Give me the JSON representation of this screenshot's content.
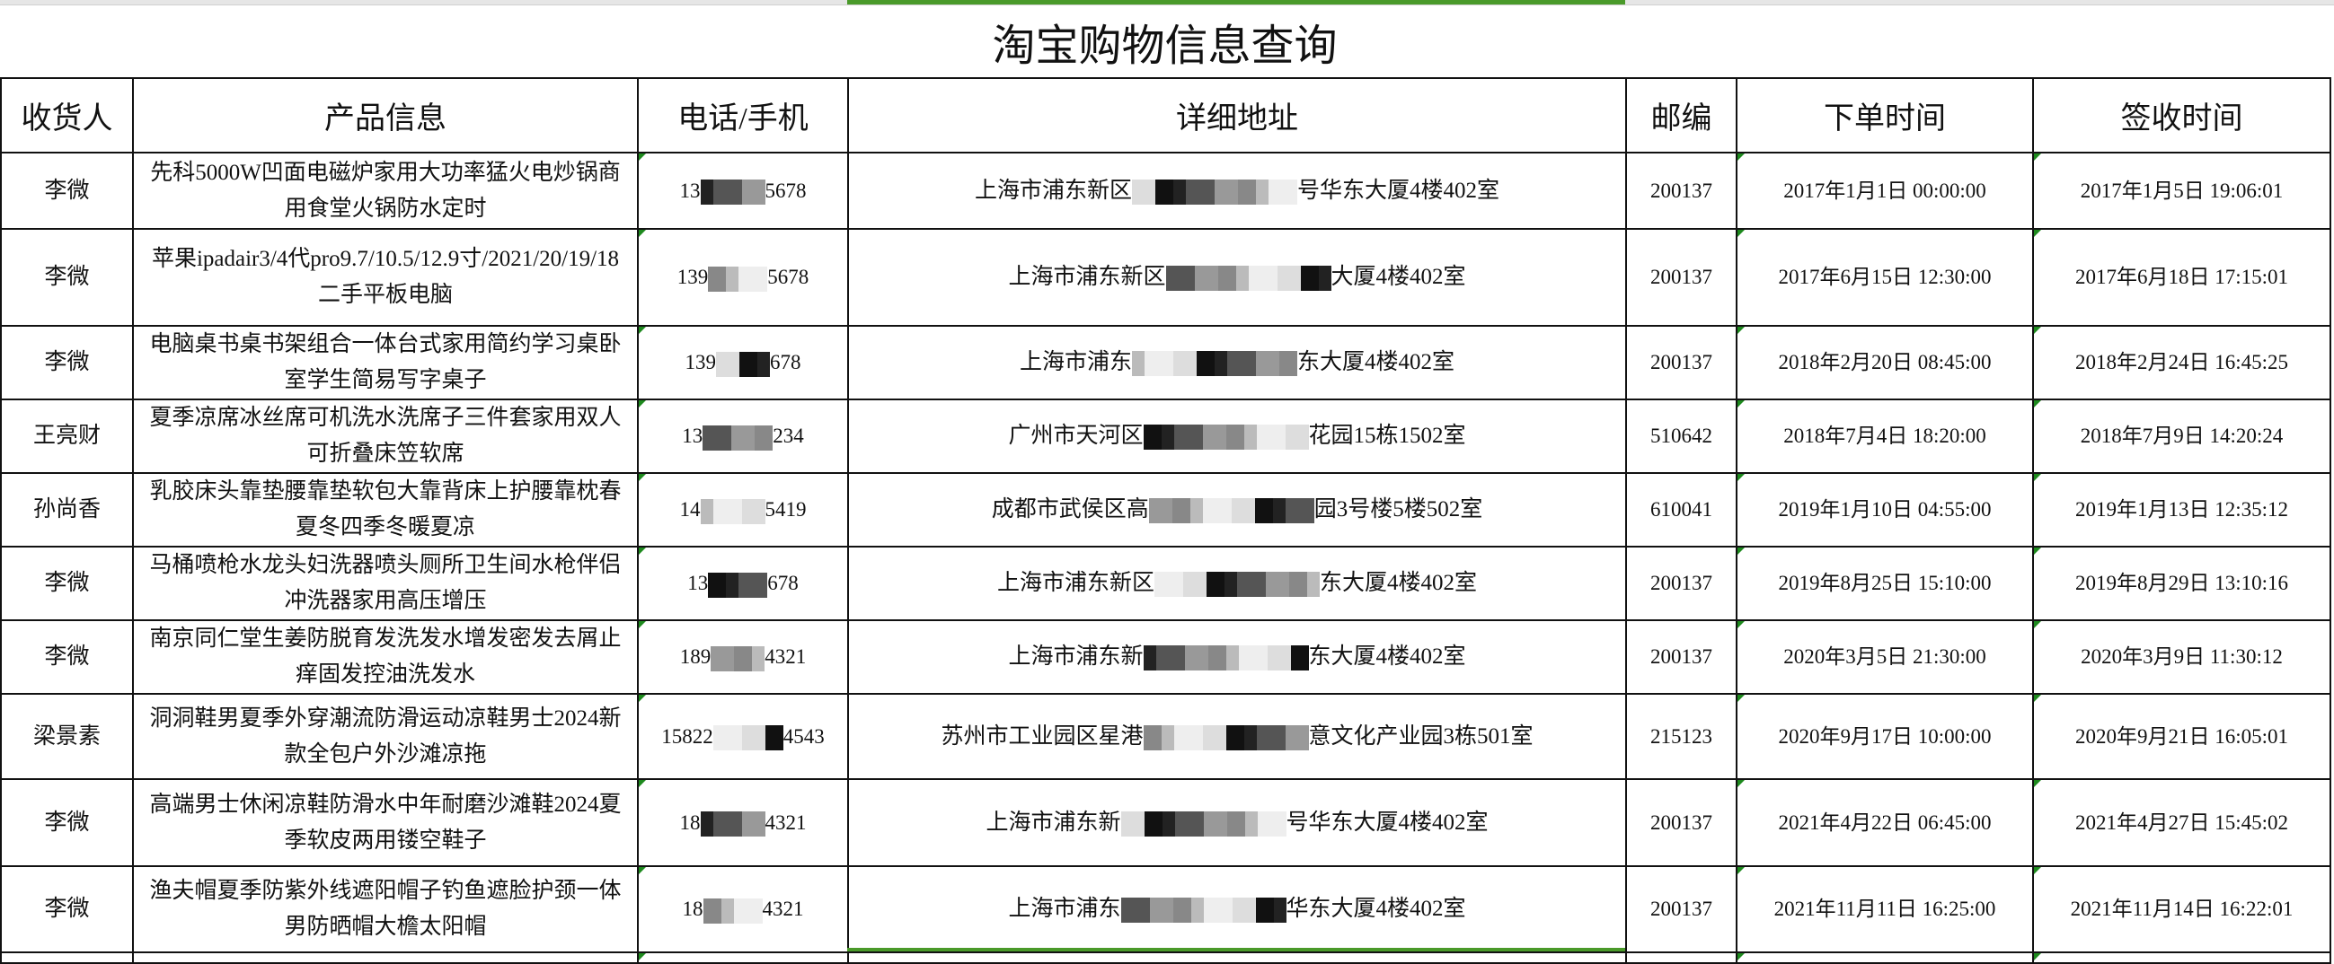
{
  "title": "淘宝购物信息查询",
  "selected_column_color": "#4a9a2a",
  "headers": [
    "收货人",
    "产品信息",
    "电话/手机",
    "详细地址",
    "邮编",
    "下单时间",
    "签收时间"
  ],
  "rows": [
    {
      "name": "李微",
      "product": "先科5000W凹面电磁炉家用大功率猛火电炒锅商用食堂火锅防水定时",
      "phone_prefix": "13",
      "phone_suffix": "5678",
      "addr_prefix": "上海市浦东新区",
      "addr_suffix": "号华东大厦4楼402室",
      "zip": "200137",
      "order_time": "2017年1月1日 00:00:00",
      "sign_time": "2017年1月5日 19:06:01"
    },
    {
      "name": "李微",
      "product": "苹果ipadair3/4代pro9.7/10.5/12.9寸/2021/20/19/18二手平板电脑",
      "phone_prefix": "139",
      "phone_suffix": "5678",
      "addr_prefix": "上海市浦东新区",
      "addr_suffix": "大厦4楼402室",
      "zip": "200137",
      "order_time": "2017年6月15日 12:30:00",
      "sign_time": "2017年6月18日 17:15:01"
    },
    {
      "name": "李微",
      "product": "电脑桌书桌书架组合一体台式家用简约学习桌卧室学生简易写字桌子",
      "phone_prefix": "139",
      "phone_suffix": "678",
      "addr_prefix": "上海市浦东",
      "addr_suffix": "东大厦4楼402室",
      "zip": "200137",
      "order_time": "2018年2月20日 08:45:00",
      "sign_time": "2018年2月24日 16:45:25"
    },
    {
      "name": "王亮财",
      "product": "夏季凉席冰丝席可机洗水洗席子三件套家用双人可折叠床笠软席",
      "phone_prefix": "13",
      "phone_suffix": "234",
      "addr_prefix": "广州市天河区",
      "addr_suffix": "花园15栋1502室",
      "zip": "510642",
      "order_time": "2018年7月4日 18:20:00",
      "sign_time": "2018年7月9日 14:20:24"
    },
    {
      "name": "孙尚香",
      "product": "乳胶床头靠垫腰靠垫软包大靠背床上护腰靠枕春夏冬四季冬暖夏凉",
      "phone_prefix": "14",
      "phone_suffix": "5419",
      "addr_prefix": "成都市武侯区高",
      "addr_suffix": "园3号楼5楼502室",
      "zip": "610041",
      "order_time": "2019年1月10日 04:55:00",
      "sign_time": "2019年1月13日 12:35:12"
    },
    {
      "name": "李微",
      "product": "马桶喷枪水龙头妇洗器喷头厕所卫生间水枪伴侣冲洗器家用高压增压",
      "phone_prefix": "13",
      "phone_suffix": "678",
      "addr_prefix": "上海市浦东新区",
      "addr_suffix": "东大厦4楼402室",
      "zip": "200137",
      "order_time": "2019年8月25日 15:10:00",
      "sign_time": "2019年8月29日 13:10:16"
    },
    {
      "name": "李微",
      "product": "南京同仁堂生姜防脱育发洗发水增发密发去屑止痒固发控油洗发水",
      "phone_prefix": "189",
      "phone_suffix": "4321",
      "addr_prefix": "上海市浦东新",
      "addr_suffix": "东大厦4楼402室",
      "zip": "200137",
      "order_time": "2020年3月5日 21:30:00",
      "sign_time": "2020年3月9日 11:30:12"
    },
    {
      "name": "梁景素",
      "product": "洞洞鞋男夏季外穿潮流防滑运动凉鞋男士2024新款全包户外沙滩凉拖",
      "phone_prefix": "15822",
      "phone_suffix": "4543",
      "addr_prefix": "苏州市工业园区星港",
      "addr_suffix": "意文化产业园3栋501室",
      "zip": "215123",
      "order_time": "2020年9月17日 10:00:00",
      "sign_time": "2020年9月21日 16:05:01"
    },
    {
      "name": "李微",
      "product": "高端男士休闲凉鞋防滑水中年耐磨沙滩鞋2024夏季软皮两用镂空鞋子",
      "phone_prefix": "18",
      "phone_suffix": "4321",
      "addr_prefix": "上海市浦东新",
      "addr_suffix": "号华东大厦4楼402室",
      "zip": "200137",
      "order_time": "2021年4月22日 06:45:00",
      "sign_time": "2021年4月27日 15:45:02"
    },
    {
      "name": "李微",
      "product": "渔夫帽夏季防紫外线遮阳帽子钓鱼遮脸护颈一体男防晒帽大檐太阳帽",
      "phone_prefix": "18",
      "phone_suffix": "4321",
      "addr_prefix": "上海市浦东",
      "addr_suffix": "华东大厦4楼402室",
      "zip": "200137",
      "order_time": "2021年11月11日 16:25:00",
      "sign_time": "2021年11月14日 16:22:01"
    }
  ]
}
